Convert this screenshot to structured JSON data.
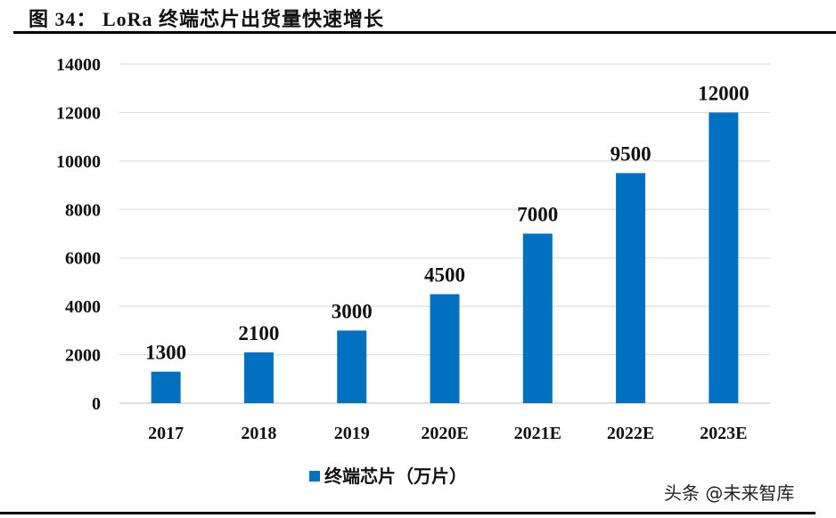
{
  "title": "图 34： LoRa 终端芯片出货量快速增长",
  "watermark": "头条 @未来智库",
  "chart_data": {
    "type": "bar",
    "title": "",
    "xlabel": "",
    "ylabel": "",
    "categories": [
      "2017",
      "2018",
      "2019",
      "2020E",
      "2021E",
      "2022E",
      "2023E"
    ],
    "series": [
      {
        "name": "终端芯片（万片）",
        "values": [
          1300,
          2100,
          3000,
          4500,
          7000,
          9500,
          12000
        ],
        "color": "#0070C0"
      }
    ],
    "ylim": [
      0,
      14000
    ],
    "yticks": [
      0,
      2000,
      4000,
      6000,
      8000,
      10000,
      12000,
      14000
    ],
    "grid": true,
    "gridline_color": "#d9d9d9",
    "data_labels": true,
    "legend_position": "bottom"
  }
}
